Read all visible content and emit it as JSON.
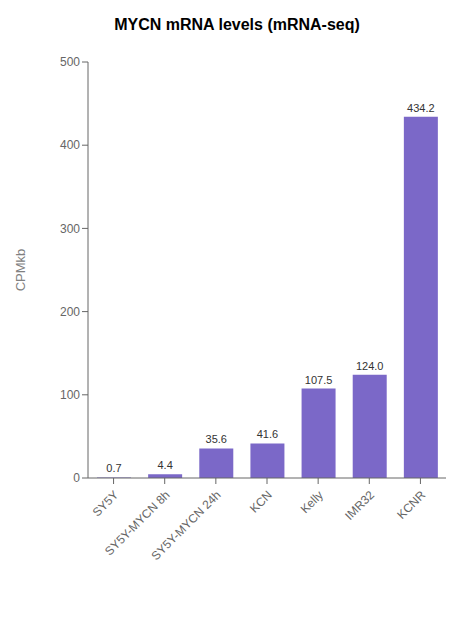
{
  "chart_data": {
    "type": "bar",
    "title": "MYCN mRNA levels (mRNA-seq)",
    "y_label": "CPMkb",
    "categories": [
      "SY5Y",
      "SY5Y-MYCN 8h",
      "SY5Y-MYCN 24h",
      "KCN",
      "Kelly",
      "IMR32",
      "KCNR"
    ],
    "values": [
      0.7,
      4.4,
      35.6,
      41.6,
      107.5,
      124.0,
      434.2
    ],
    "value_labels": [
      "0.7",
      "4.4",
      "35.6",
      "41.6",
      "107.5",
      "124.0",
      "434.2"
    ],
    "color": "#7B68C8",
    "ylim": [
      0,
      500
    ],
    "yticks": [
      0,
      100,
      200,
      300,
      400,
      500
    ],
    "grid": false,
    "data_labels": true
  }
}
